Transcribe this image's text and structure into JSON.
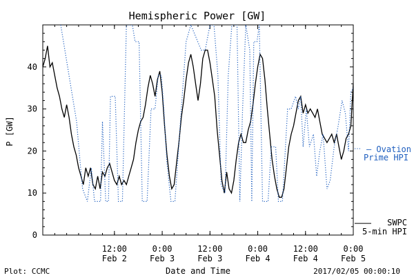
{
  "chart_data": {
    "type": "line",
    "title": "Hemispheric Power [GW]",
    "ylabel": "P [GW]",
    "xlabel": "Date and Time",
    "ylim": [
      0,
      50
    ],
    "yticks": [
      0,
      10,
      20,
      30,
      40
    ],
    "x_unit": "hours since 2017-02-01 18:00",
    "xlim": [
      0,
      78
    ],
    "xticks": [
      {
        "x": 18,
        "time": "12:00",
        "date": "Feb 2"
      },
      {
        "x": 30,
        "time": "0:00",
        "date": "Feb 3"
      },
      {
        "x": 42,
        "time": "12:00",
        "date": "Feb 3"
      },
      {
        "x": 54,
        "time": "0:00",
        "date": "Feb 4"
      },
      {
        "x": 66,
        "time": "12:00",
        "date": "Feb 4"
      },
      {
        "x": 78,
        "time": "0:00",
        "date": "Feb 5"
      }
    ],
    "series": [
      {
        "name": "SWPC 5-min HPI",
        "label_lines": [
          "SWPC",
          "5-min HPI"
        ],
        "color": "#000000",
        "style": "solid",
        "points": [
          [
            0.0,
            40
          ],
          [
            0.6,
            42
          ],
          [
            1.2,
            45
          ],
          [
            1.8,
            40
          ],
          [
            2.4,
            41
          ],
          [
            3.0,
            38
          ],
          [
            3.6,
            35
          ],
          [
            4.2,
            33
          ],
          [
            4.8,
            30
          ],
          [
            5.4,
            28
          ],
          [
            6.0,
            31
          ],
          [
            6.6,
            28
          ],
          [
            7.2,
            24
          ],
          [
            7.8,
            21
          ],
          [
            8.4,
            19
          ],
          [
            9.0,
            16
          ],
          [
            9.6,
            14
          ],
          [
            10.2,
            12
          ],
          [
            10.8,
            16
          ],
          [
            11.4,
            14
          ],
          [
            12.0,
            16
          ],
          [
            12.6,
            12
          ],
          [
            13.2,
            11
          ],
          [
            13.8,
            14
          ],
          [
            14.4,
            11
          ],
          [
            15.0,
            15
          ],
          [
            15.6,
            14
          ],
          [
            16.2,
            16
          ],
          [
            16.8,
            17
          ],
          [
            17.4,
            15
          ],
          [
            18.0,
            13
          ],
          [
            18.6,
            12
          ],
          [
            19.2,
            14
          ],
          [
            19.8,
            12
          ],
          [
            20.4,
            13
          ],
          [
            21.0,
            12
          ],
          [
            21.6,
            14
          ],
          [
            22.2,
            16
          ],
          [
            22.8,
            18
          ],
          [
            23.4,
            22
          ],
          [
            24.0,
            25
          ],
          [
            24.6,
            27
          ],
          [
            25.2,
            28
          ],
          [
            25.8,
            31
          ],
          [
            26.4,
            35
          ],
          [
            27.0,
            38
          ],
          [
            27.6,
            36
          ],
          [
            28.2,
            33
          ],
          [
            28.8,
            37
          ],
          [
            29.4,
            39
          ],
          [
            30.0,
            34
          ],
          [
            30.6,
            26
          ],
          [
            31.2,
            19
          ],
          [
            31.8,
            14
          ],
          [
            32.4,
            11
          ],
          [
            33.0,
            12
          ],
          [
            33.6,
            17
          ],
          [
            34.2,
            22
          ],
          [
            34.8,
            28
          ],
          [
            35.4,
            32
          ],
          [
            36.0,
            37
          ],
          [
            36.6,
            41
          ],
          [
            37.2,
            43
          ],
          [
            37.8,
            40
          ],
          [
            38.4,
            36
          ],
          [
            39.0,
            32
          ],
          [
            39.6,
            36
          ],
          [
            40.2,
            42
          ],
          [
            40.8,
            44
          ],
          [
            41.4,
            44
          ],
          [
            42.0,
            41
          ],
          [
            42.6,
            37
          ],
          [
            43.2,
            33
          ],
          [
            43.8,
            25
          ],
          [
            44.4,
            19
          ],
          [
            45.0,
            13
          ],
          [
            45.6,
            10
          ],
          [
            46.2,
            15
          ],
          [
            46.8,
            11
          ],
          [
            47.4,
            10
          ],
          [
            48.0,
            13
          ],
          [
            48.6,
            18
          ],
          [
            49.2,
            22
          ],
          [
            49.8,
            24
          ],
          [
            50.4,
            22
          ],
          [
            51.0,
            22
          ],
          [
            51.6,
            25
          ],
          [
            52.2,
            27
          ],
          [
            52.8,
            31
          ],
          [
            53.4,
            36
          ],
          [
            54.0,
            40
          ],
          [
            54.6,
            43
          ],
          [
            55.2,
            42
          ],
          [
            55.8,
            37
          ],
          [
            56.4,
            30
          ],
          [
            57.0,
            24
          ],
          [
            57.6,
            18
          ],
          [
            58.2,
            14
          ],
          [
            58.8,
            11
          ],
          [
            59.4,
            9
          ],
          [
            60.0,
            9
          ],
          [
            60.6,
            11
          ],
          [
            61.2,
            16
          ],
          [
            61.8,
            21
          ],
          [
            62.4,
            24
          ],
          [
            63.0,
            26
          ],
          [
            63.6,
            29
          ],
          [
            64.2,
            32
          ],
          [
            64.8,
            33
          ],
          [
            65.4,
            29
          ],
          [
            66.0,
            31
          ],
          [
            66.6,
            29
          ],
          [
            67.2,
            30
          ],
          [
            67.8,
            29
          ],
          [
            68.4,
            28
          ],
          [
            69.0,
            30
          ],
          [
            69.6,
            27
          ],
          [
            70.2,
            24
          ],
          [
            70.8,
            23
          ],
          [
            71.4,
            22
          ],
          [
            72.0,
            23
          ],
          [
            72.6,
            24
          ],
          [
            73.2,
            22
          ],
          [
            73.8,
            24
          ],
          [
            74.4,
            21
          ],
          [
            75.0,
            18
          ],
          [
            75.6,
            20
          ],
          [
            76.2,
            23
          ],
          [
            76.8,
            24
          ],
          [
            77.4,
            26
          ],
          [
            78.0,
            36
          ]
        ]
      },
      {
        "name": "Ovation Prime HPI",
        "label_lines": [
          "— Ovation",
          "Prime HPI"
        ],
        "color": "#1f5fbf",
        "style": "dotted",
        "points": [
          [
            4.5,
            50
          ],
          [
            8.5,
            27
          ],
          [
            9.5,
            16
          ],
          [
            10.0,
            11
          ],
          [
            11.2,
            8
          ],
          [
            12.2,
            16
          ],
          [
            13.0,
            8
          ],
          [
            14.5,
            8
          ],
          [
            15.0,
            27
          ],
          [
            15.8,
            8
          ],
          [
            16.5,
            8
          ],
          [
            17.0,
            33
          ],
          [
            18.2,
            33
          ],
          [
            19.0,
            8
          ],
          [
            20.0,
            8
          ],
          [
            21.0,
            50
          ],
          [
            22.5,
            50
          ],
          [
            23.2,
            46
          ],
          [
            24.2,
            46
          ],
          [
            25.0,
            8
          ],
          [
            26.2,
            8
          ],
          [
            27.2,
            30
          ],
          [
            28.2,
            30
          ],
          [
            29.0,
            38
          ],
          [
            29.8,
            38
          ],
          [
            30.4,
            30
          ],
          [
            31.2,
            17
          ],
          [
            32.2,
            8
          ],
          [
            33.2,
            8
          ],
          [
            34.0,
            19
          ],
          [
            34.8,
            30
          ],
          [
            36.0,
            46
          ],
          [
            37.2,
            50
          ],
          [
            39.8,
            44
          ],
          [
            40.8,
            44
          ],
          [
            42.0,
            50
          ],
          [
            43.0,
            50
          ],
          [
            44.0,
            38
          ],
          [
            44.8,
            12
          ],
          [
            45.8,
            10
          ],
          [
            46.6,
            38
          ],
          [
            47.5,
            50
          ],
          [
            48.8,
            50
          ],
          [
            49.5,
            8
          ],
          [
            50.2,
            30
          ],
          [
            51.0,
            50
          ],
          [
            52.0,
            44
          ],
          [
            52.5,
            8
          ],
          [
            53.0,
            46
          ],
          [
            53.8,
            46
          ],
          [
            54.4,
            50
          ],
          [
            55.2,
            8
          ],
          [
            56.6,
            8
          ],
          [
            57.4,
            21
          ],
          [
            58.5,
            21
          ],
          [
            59.2,
            8
          ],
          [
            60.2,
            8
          ],
          [
            61.5,
            30
          ],
          [
            62.4,
            30
          ],
          [
            63.5,
            33
          ],
          [
            64.2,
            30
          ],
          [
            64.8,
            33
          ],
          [
            65.4,
            21
          ],
          [
            66.2,
            30
          ],
          [
            67.0,
            21
          ],
          [
            68.0,
            24
          ],
          [
            68.8,
            14
          ],
          [
            69.6,
            20
          ],
          [
            70.4,
            24
          ],
          [
            71.4,
            11
          ],
          [
            72.2,
            13
          ],
          [
            73.2,
            21
          ],
          [
            74.2,
            26
          ],
          [
            75.2,
            32
          ],
          [
            76.0,
            29
          ],
          [
            76.8,
            20
          ],
          [
            77.4,
            34
          ],
          [
            78.0,
            35
          ]
        ]
      }
    ]
  },
  "footer": {
    "left": "Plot: CCMC",
    "right": "2017/02/05 00:00:10"
  }
}
